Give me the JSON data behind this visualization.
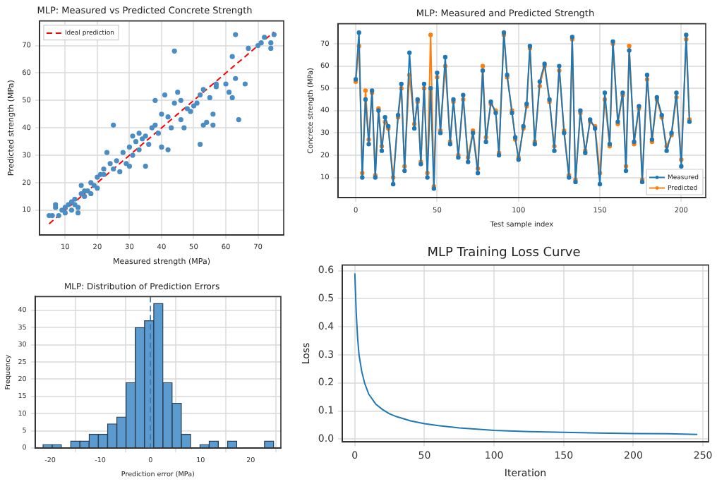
{
  "chart_data": [
    {
      "type": "scatter",
      "title": "MLP: Measured vs Predicted Concrete Strength",
      "xlabel": "Measured strength (MPa)",
      "ylabel": "Predicted strength (MPa)",
      "xlim": [
        2,
        78
      ],
      "ylim": [
        1,
        79
      ],
      "xticks": [
        10,
        20,
        30,
        40,
        50,
        60,
        70
      ],
      "yticks": [
        10,
        20,
        30,
        40,
        50,
        60,
        70
      ],
      "grid": true,
      "legend": "top left",
      "series": [
        {
          "type": "scatter",
          "color": "#4a8cc4",
          "x": [
            5,
            6,
            7,
            7,
            8,
            9,
            10,
            10,
            11,
            12,
            12,
            13,
            13,
            14,
            14,
            15,
            15,
            16,
            16,
            17,
            18,
            18,
            19,
            20,
            20,
            21,
            22,
            22,
            23,
            24,
            25,
            25,
            26,
            27,
            28,
            29,
            30,
            30,
            31,
            31,
            32,
            33,
            33,
            34,
            35,
            35,
            36,
            37,
            38,
            38,
            39,
            40,
            40,
            41,
            42,
            42,
            43,
            44,
            44,
            45,
            46,
            46,
            47,
            48,
            49,
            50,
            51,
            52,
            52,
            53,
            53,
            54,
            55,
            56,
            56,
            57,
            57,
            60,
            61,
            62,
            62,
            63,
            64,
            63,
            66,
            67,
            70,
            71,
            72,
            74,
            74,
            75
          ],
          "values": [
            8,
            8,
            11,
            12,
            8,
            10,
            11,
            9,
            12,
            10,
            13,
            12,
            14,
            11,
            9,
            16,
            19,
            15,
            17,
            17,
            16,
            20,
            19,
            18,
            22,
            23,
            25,
            23,
            31,
            27,
            25,
            41,
            28,
            24,
            31,
            27,
            26,
            33,
            37,
            30,
            35,
            38,
            32,
            36,
            26,
            37,
            34,
            40,
            41,
            50,
            38,
            45,
            33,
            52,
            32,
            44,
            40,
            49,
            68,
            53,
            50,
            43,
            40,
            47,
            46,
            48,
            49,
            34,
            52,
            54,
            41,
            42,
            51,
            41,
            45,
            56,
            55,
            56,
            53,
            51,
            66,
            58,
            43,
            74,
            56,
            69,
            70,
            71,
            73,
            71,
            69,
            74
          ]
        },
        {
          "type": "line",
          "name": "Ideal prediction",
          "color": "#ff0000",
          "line_style": "dashed",
          "x": [
            5,
            75
          ],
          "values": [
            5,
            75
          ]
        }
      ]
    },
    {
      "type": "line",
      "title": "MLP: Measured and Predicted Strength",
      "xlabel": "Test sample index",
      "ylabel": "Concrete strength (MPa)",
      "xlim": [
        -11,
        215
      ],
      "ylim": [
        1,
        79
      ],
      "xticks": [
        0,
        50,
        100,
        150,
        200
      ],
      "yticks": [
        10,
        20,
        30,
        40,
        50,
        60,
        70
      ],
      "grid": true,
      "legend": "bottom right",
      "marker": "circle",
      "x": [
        0,
        2,
        4,
        6,
        8,
        10,
        12,
        14,
        16,
        18,
        20,
        23,
        26,
        28,
        30,
        33,
        36,
        38,
        40,
        42,
        44,
        46,
        48,
        50,
        52,
        55,
        58,
        60,
        63,
        66,
        69,
        72,
        75,
        78,
        80,
        83,
        86,
        88,
        91,
        93,
        96,
        98,
        100,
        103,
        105,
        107,
        110,
        113,
        116,
        119,
        122,
        125,
        128,
        131,
        133,
        135,
        138,
        141,
        144,
        147,
        150,
        153,
        156,
        158,
        161,
        164,
        166,
        168,
        171,
        174,
        176,
        179,
        182,
        185,
        188,
        191,
        194,
        197,
        200,
        203,
        205
      ],
      "series": [
        {
          "name": "Measured",
          "color": "#1f77b4",
          "values": [
            54,
            75,
            10,
            45,
            25,
            49,
            10,
            40,
            22,
            37,
            33,
            7,
            38,
            52,
            13,
            66,
            32,
            45,
            16,
            52,
            10,
            50,
            5,
            57,
            30,
            64,
            25,
            45,
            19,
            47,
            17,
            30,
            12,
            58,
            26,
            44,
            39,
            20,
            75,
            56,
            39,
            28,
            18,
            33,
            43,
            69,
            25,
            53,
            61,
            45,
            22,
            60,
            30,
            10,
            73,
            8,
            40,
            21,
            36,
            32,
            7,
            48,
            25,
            71,
            35,
            48,
            13,
            67,
            26,
            42,
            8,
            56,
            27,
            46,
            38,
            22,
            30,
            48,
            15,
            74,
            35
          ]
        },
        {
          "name": "Predicted",
          "color": "#ff7f0e",
          "values": [
            53,
            69,
            12,
            49,
            27,
            48,
            11,
            41,
            24,
            35,
            32,
            10,
            37,
            50,
            15,
            56,
            34,
            44,
            17,
            50,
            12,
            74,
            6,
            55,
            31,
            60,
            26,
            44,
            20,
            45,
            19,
            31,
            14,
            60,
            28,
            43,
            40,
            21,
            74,
            55,
            40,
            27,
            19,
            32,
            42,
            68,
            26,
            51,
            60,
            44,
            24,
            58,
            31,
            11,
            72,
            9,
            39,
            22,
            35,
            33,
            12,
            45,
            24,
            70,
            34,
            47,
            15,
            69,
            25,
            41,
            9,
            54,
            26,
            45,
            37,
            24,
            29,
            46,
            18,
            72,
            36
          ]
        }
      ]
    },
    {
      "type": "histogram",
      "title": "MLP: Distribution of Prediction Errors",
      "xlabel": "Prediction error (MPa)",
      "ylabel": "Frequency",
      "xlim": [
        -23,
        26
      ],
      "ylim": [
        0,
        44
      ],
      "xticks": [
        -20,
        -10,
        0,
        10,
        20
      ],
      "yticks": [
        0,
        5,
        10,
        15,
        20,
        25,
        30,
        35,
        40
      ],
      "grid": true,
      "color": "#5b9bd0",
      "bins": [
        -21.43,
        -19.59,
        -17.75,
        -15.91,
        -14.07,
        -12.23,
        -10.39,
        -8.55,
        -6.71,
        -4.87,
        -3.03,
        -1.19,
        0.65,
        2.49,
        4.33,
        6.17,
        8.01,
        9.85,
        11.69,
        13.53,
        15.37,
        17.21,
        19.05,
        20.89,
        22.73,
        24.57
      ],
      "values": [
        1,
        1,
        0,
        2,
        2,
        4,
        4,
        7,
        9,
        19,
        35,
        37,
        42,
        19,
        13,
        4,
        0,
        1,
        2,
        0,
        2,
        0,
        0,
        0,
        2
      ],
      "ref_lines": [
        {
          "axis": "x",
          "value": 0,
          "color": "#3a78b0",
          "line_style": "dashed"
        }
      ]
    },
    {
      "type": "line",
      "title": "MLP Training Loss Curve",
      "xlabel": "Iteration",
      "ylabel": "Loss",
      "xlim": [
        -9,
        254
      ],
      "ylim": [
        -0.01,
        0.62
      ],
      "xticks": [
        0,
        50,
        100,
        150,
        200,
        250
      ],
      "yticks": [
        {
          "value": 0,
          "label": "0.0"
        },
        0.1,
        0.2,
        0.3,
        0.4,
        0.5,
        0.6
      ],
      "grid": true,
      "x": [
        0,
        1,
        2,
        3,
        5,
        7,
        10,
        15,
        20,
        25,
        30,
        40,
        50,
        60,
        75,
        100,
        125,
        150,
        175,
        200,
        225,
        246
      ],
      "series": [
        {
          "color": "#1f77b4",
          "values": [
            0.59,
            0.45,
            0.36,
            0.3,
            0.24,
            0.2,
            0.16,
            0.125,
            0.105,
            0.09,
            0.08,
            0.065,
            0.055,
            0.048,
            0.04,
            0.031,
            0.027,
            0.024,
            0.022,
            0.02,
            0.019,
            0.017
          ]
        }
      ]
    }
  ]
}
